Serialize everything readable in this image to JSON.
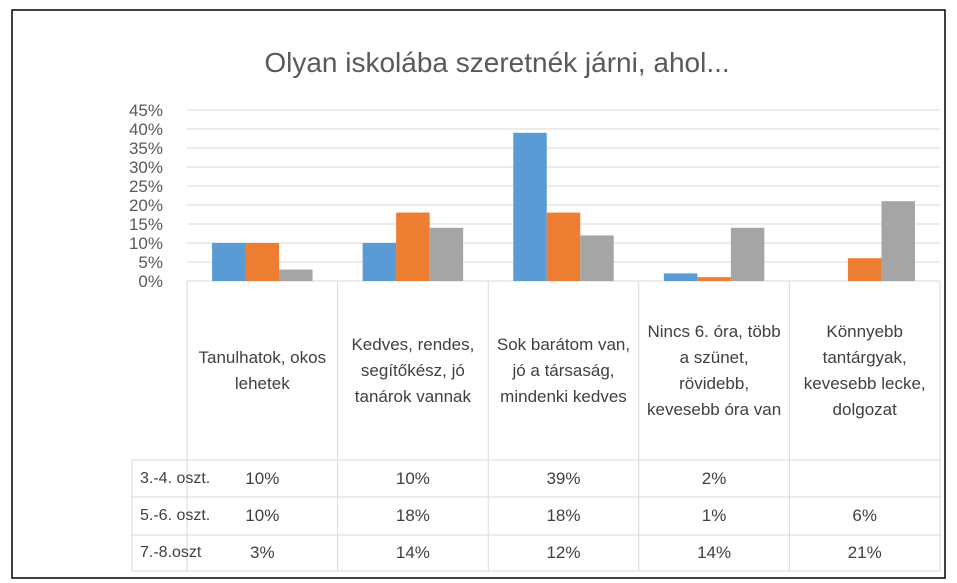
{
  "chart_data": {
    "type": "bar",
    "title": "Olyan iskolába szeretnék járni, ahol...",
    "categories": [
      "Tanulhatok, okos lehetek",
      "Kedves, rendes, segítőkész, jó tanárok vannak",
      "Sok barátom van, jó a társaság, mindenki kedves",
      "Nincs 6. óra, több a szünet, rövidebb, kevesebb óra van",
      "Könnyebb tantárgyak, kevesebb lecke, dolgozat"
    ],
    "series": [
      {
        "name": "3.-4. oszt.",
        "color": "#5b9bd5",
        "values": [
          10,
          10,
          39,
          2,
          null
        ],
        "value_labels": [
          "10%",
          "10%",
          "39%",
          "2%",
          null
        ]
      },
      {
        "name": "5.-6. oszt.",
        "color": "#ed7d31",
        "values": [
          10,
          18,
          18,
          1,
          6
        ],
        "value_labels": [
          "10%",
          "18%",
          "18%",
          "1%",
          "6%"
        ]
      },
      {
        "name": "7.-8.oszt",
        "color": "#a5a5a5",
        "values": [
          3,
          14,
          12,
          14,
          21
        ],
        "value_labels": [
          "3%",
          "14%",
          "12%",
          "14%",
          "21%"
        ]
      }
    ],
    "ylim": [
      0,
      45
    ],
    "yticks": [
      {
        "value": 0,
        "label": "0%"
      },
      {
        "value": 5,
        "label": "5%"
      },
      {
        "value": 10,
        "label": "10%"
      },
      {
        "value": 15,
        "label": "15%"
      },
      {
        "value": 20,
        "label": "20%"
      },
      {
        "value": 25,
        "label": "25%"
      },
      {
        "value": 30,
        "label": "30%"
      },
      {
        "value": 35,
        "label": "35%"
      },
      {
        "value": 40,
        "label": "40%"
      },
      {
        "value": 45,
        "label": "45%"
      }
    ],
    "grid": true
  }
}
